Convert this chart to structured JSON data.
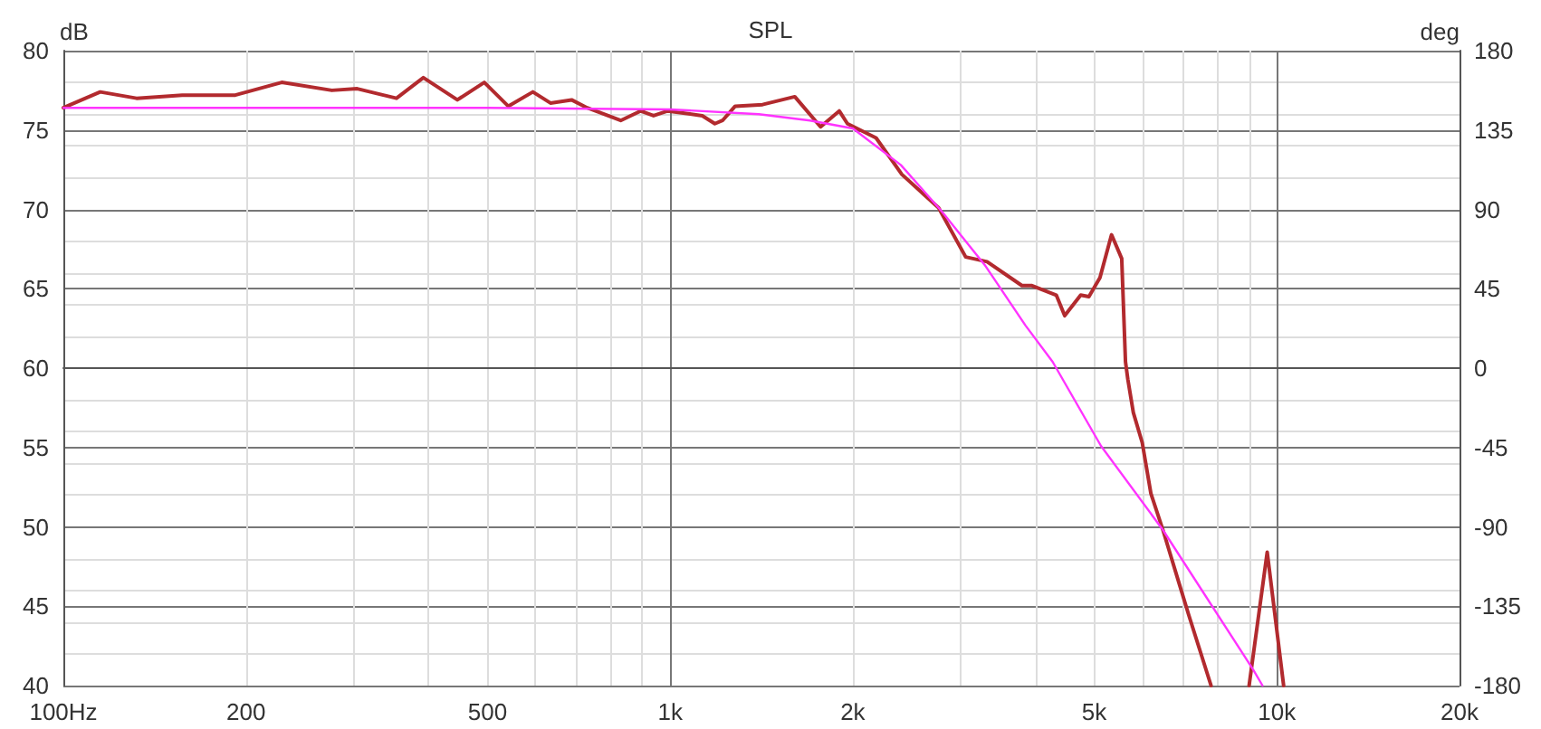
{
  "chart_data": {
    "type": "line",
    "title": "SPL",
    "ylabel": "dB",
    "y2label": "deg",
    "log": "x",
    "grid": true,
    "marker": "none",
    "line_style": "solid",
    "xlim": [
      100,
      20000
    ],
    "xticks": [
      {
        "value": 100,
        "label": "100Hz"
      },
      200,
      500,
      {
        "value": 1000,
        "label": "1k"
      },
      {
        "value": 2000,
        "label": "2k"
      },
      {
        "value": 5000,
        "label": "5k"
      },
      {
        "value": 10000,
        "label": "10k"
      },
      {
        "value": 20000,
        "label": "20k"
      }
    ],
    "ylim": [
      40,
      80
    ],
    "yticks": [
      40,
      45,
      50,
      55,
      60,
      65,
      70,
      75,
      80
    ],
    "y2lim": [
      -180,
      180
    ],
    "y2ticks": [
      -180,
      -135,
      -90,
      -45,
      0,
      45,
      90,
      135,
      180
    ],
    "series": [
      {
        "color": "#b22a2e",
        "x": [
          100,
          115,
          132,
          157,
          192,
          229,
          277,
          305,
          354,
          392,
          446,
          494,
          541,
          594,
          635,
          688,
          730,
          829,
          894,
          939,
          991,
          1130,
          1185,
          1220,
          1280,
          1420,
          1605,
          1770,
          1900,
          1960,
          2185,
          2410,
          2770,
          3070,
          3330,
          3800,
          3940,
          4330,
          4470,
          4750,
          4900,
          5110,
          5340,
          5550,
          5630,
          5680,
          5800,
          6000,
          6200,
          6490,
          6880,
          7150,
          7790,
          8400,
          9000,
          9640,
          10260
        ],
        "values": [
          76.4,
          77.4,
          77.0,
          77.2,
          77.2,
          78.0,
          77.5,
          77.6,
          77.0,
          78.3,
          76.9,
          78.0,
          76.5,
          77.4,
          76.7,
          76.9,
          76.4,
          75.6,
          76.2,
          75.9,
          76.2,
          75.9,
          75.4,
          75.6,
          76.5,
          76.6,
          77.1,
          75.2,
          76.2,
          75.4,
          74.5,
          72.2,
          70.1,
          67.0,
          66.7,
          65.2,
          65.2,
          64.6,
          63.3,
          64.6,
          64.5,
          65.7,
          68.4,
          66.9,
          60.4,
          59.3,
          57.2,
          55.3,
          52.1,
          49.8,
          46.6,
          44.5,
          40,
          null,
          40,
          48.4,
          40
        ]
      },
      {
        "color": "#ff33ff",
        "x": [
          100,
          500,
          1000,
          1400,
          1700,
          2000,
          2400,
          2800,
          3300,
          3850,
          4270,
          5130,
          6490,
          9140,
          9470
        ],
        "values": [
          76.4,
          76.4,
          76.3,
          76.0,
          75.6,
          75.1,
          72.8,
          69.9,
          66.5,
          62.7,
          60.4,
          55.1,
          49.8,
          41.0,
          40
        ]
      }
    ]
  }
}
